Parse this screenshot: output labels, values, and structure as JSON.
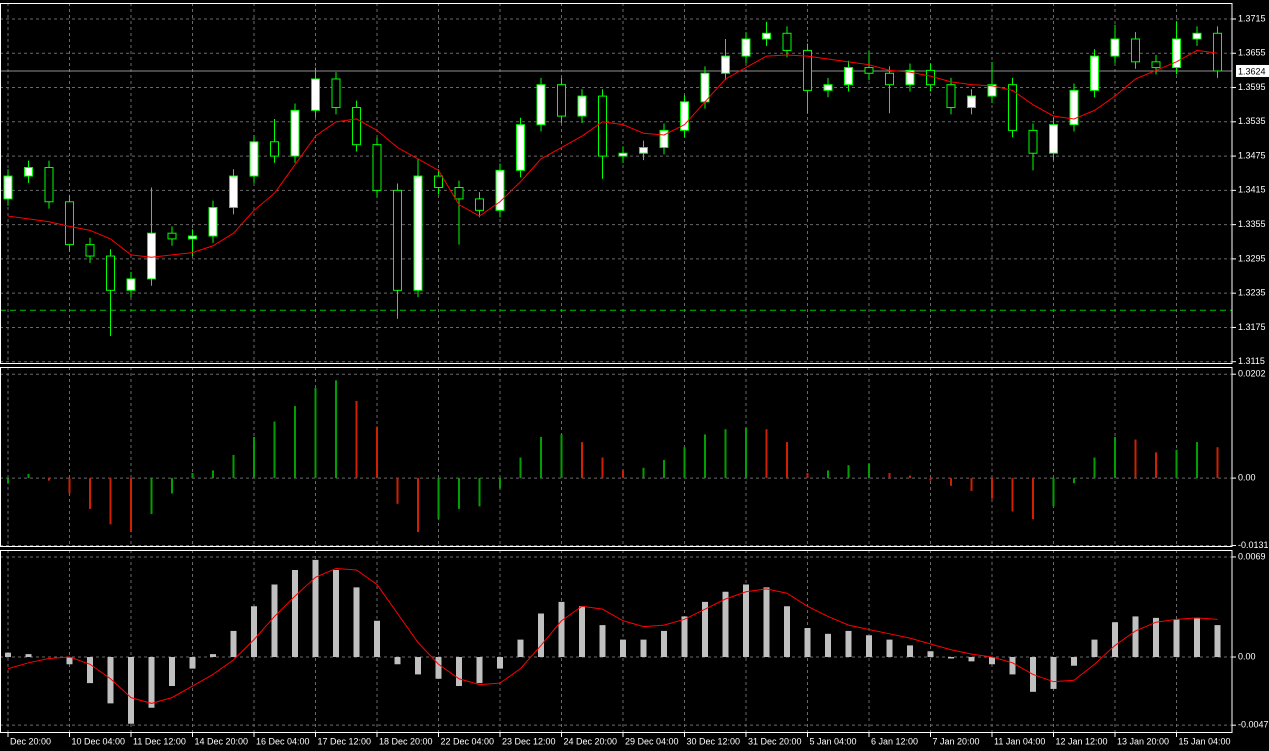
{
  "chart_data": [
    {
      "type": "candlestick",
      "open": [
        1.34,
        1.344,
        1.3455,
        1.3395,
        1.332,
        1.33,
        1.324,
        1.326,
        1.334,
        1.333,
        1.3335,
        1.3385,
        1.344,
        1.35,
        1.3475,
        1.3555,
        1.361,
        1.356,
        1.3495,
        1.3415,
        1.324,
        1.344,
        1.342,
        1.34,
        1.338,
        1.345,
        1.353,
        1.36,
        1.3545,
        1.358,
        1.3475,
        1.348,
        1.349,
        1.352,
        1.357,
        1.362,
        1.365,
        1.368,
        1.369,
        1.366,
        1.359,
        1.36,
        1.363,
        1.362,
        1.36,
        1.3625,
        1.36,
        1.356,
        1.358,
        1.36,
        1.352,
        1.348,
        1.353,
        1.359,
        1.365,
        1.368,
        1.364,
        1.363,
        1.368,
        1.369
      ],
      "high": [
        1.3452,
        1.3467,
        1.3467,
        1.3407,
        1.3332,
        1.3312,
        1.3272,
        1.342,
        1.3352,
        1.3347,
        1.3397,
        1.3452,
        1.3512,
        1.354,
        1.3567,
        1.363,
        1.3622,
        1.3572,
        1.3507,
        1.3427,
        1.347,
        1.3452,
        1.3432,
        1.3412,
        1.3462,
        1.3542,
        1.3612,
        1.3612,
        1.3592,
        1.3592,
        1.3492,
        1.3502,
        1.3532,
        1.3582,
        1.3632,
        1.368,
        1.3692,
        1.371,
        1.3702,
        1.3672,
        1.3612,
        1.3642,
        1.366,
        1.3632,
        1.3637,
        1.3637,
        1.3612,
        1.3592,
        1.364,
        1.3612,
        1.3532,
        1.3542,
        1.3602,
        1.3662,
        1.3705,
        1.3692,
        1.3652,
        1.371,
        1.3702,
        1.3702
      ],
      "low": [
        1.3388,
        1.3428,
        1.3383,
        1.3308,
        1.3288,
        1.316,
        1.3228,
        1.3248,
        1.3318,
        1.33,
        1.3323,
        1.3373,
        1.3428,
        1.3463,
        1.3463,
        1.3543,
        1.3548,
        1.3483,
        1.3403,
        1.319,
        1.3228,
        1.3408,
        1.332,
        1.3368,
        1.3368,
        1.3438,
        1.3518,
        1.3533,
        1.3533,
        1.3435,
        1.3463,
        1.3468,
        1.3478,
        1.3508,
        1.3558,
        1.3608,
        1.3638,
        1.3668,
        1.3648,
        1.355,
        1.3578,
        1.3588,
        1.3608,
        1.355,
        1.3588,
        1.3588,
        1.3548,
        1.3548,
        1.3568,
        1.3508,
        1.345,
        1.3468,
        1.3518,
        1.3578,
        1.3638,
        1.3628,
        1.3618,
        1.3618,
        1.3668,
        1.3612
      ],
      "close": [
        1.344,
        1.3455,
        1.3395,
        1.332,
        1.33,
        1.324,
        1.326,
        1.334,
        1.333,
        1.3335,
        1.3385,
        1.344,
        1.35,
        1.3475,
        1.3555,
        1.361,
        1.356,
        1.3495,
        1.3415,
        1.324,
        1.344,
        1.342,
        1.34,
        1.338,
        1.345,
        1.353,
        1.36,
        1.3545,
        1.358,
        1.3475,
        1.348,
        1.349,
        1.352,
        1.357,
        1.362,
        1.365,
        1.368,
        1.369,
        1.366,
        1.359,
        1.36,
        1.363,
        1.362,
        1.36,
        1.3625,
        1.36,
        1.356,
        1.358,
        1.36,
        1.352,
        1.348,
        1.353,
        1.359,
        1.365,
        1.368,
        1.364,
        1.363,
        1.368,
        1.369,
        1.3624
      ],
      "up_color": "#ffffff",
      "down_color": "#000000",
      "wick_color": "#00ff00",
      "series": [
        {
          "color": "#ff0000",
          "values": [
            1.337,
            1.3365,
            1.336,
            1.3352,
            1.3345,
            1.333,
            1.3302,
            1.3298,
            1.3302,
            1.3306,
            1.3318,
            1.334,
            1.338,
            1.341,
            1.346,
            1.351,
            1.3535,
            1.354,
            1.352,
            1.349,
            1.347,
            1.345,
            1.339,
            1.337,
            1.3395,
            1.343,
            1.347,
            1.349,
            1.351,
            1.3535,
            1.353,
            1.3515,
            1.3512,
            1.353,
            1.357,
            1.361,
            1.363,
            1.365,
            1.3652,
            1.365,
            1.3645,
            1.364,
            1.3635,
            1.3625,
            1.3622,
            1.3615,
            1.3605,
            1.36,
            1.3598,
            1.359,
            1.3565,
            1.3545,
            1.354,
            1.3555,
            1.358,
            1.361,
            1.3625,
            1.364,
            1.366,
            1.3655
          ]
        }
      ],
      "last_price": 1.3624,
      "level": 1.3205,
      "level_color": "#00c000",
      "ylim": [
        1.3111,
        1.3743
      ],
      "yticks": [
        1.3715,
        1.3655,
        1.3595,
        1.3535,
        1.3475,
        1.3415,
        1.3355,
        1.3295,
        1.3235,
        1.3175,
        1.3115
      ],
      "grid": true
    },
    {
      "type": "bar",
      "values": [
        -0.001,
        0.0008,
        -0.0005,
        -0.003,
        -0.006,
        -0.009,
        -0.0105,
        -0.007,
        -0.003,
        0.001,
        0.0015,
        0.0045,
        0.008,
        0.011,
        0.014,
        0.0175,
        0.019,
        0.015,
        0.01,
        -0.005,
        -0.0105,
        -0.008,
        -0.006,
        -0.0055,
        -0.002,
        0.004,
        0.008,
        0.0085,
        0.007,
        0.004,
        0.0015,
        0.002,
        0.0035,
        0.006,
        0.0085,
        0.0095,
        0.0098,
        0.0095,
        0.007,
        0.001,
        0.0015,
        0.0025,
        0.0028,
        0.001,
        0.0005,
        -0.0005,
        -0.0015,
        -0.0025,
        -0.004,
        -0.0065,
        -0.008,
        -0.0055,
        -0.001,
        0.004,
        0.008,
        0.0075,
        0.005,
        0.0055,
        0.007,
        0.006
      ],
      "up_color": "#00a000",
      "down_color": "#d02000",
      "ylim": [
        -0.0134,
        0.0216
      ],
      "yticks": [
        0.0202,
        {
          "value": 0,
          "label": "0.00"
        },
        -0.0131
      ],
      "grid": true
    },
    {
      "type": "bar",
      "values": [
        0.0003,
        0.0002,
        0.0,
        -0.0005,
        -0.0018,
        -0.0032,
        -0.0046,
        -0.0035,
        -0.002,
        -0.0008,
        0.0002,
        0.0018,
        0.0035,
        0.005,
        0.006,
        0.0067,
        0.006,
        0.0048,
        0.0025,
        -0.0005,
        -0.0012,
        -0.0015,
        -0.002,
        -0.0018,
        -0.0008,
        0.0012,
        0.003,
        0.0038,
        0.0035,
        0.0022,
        0.0012,
        0.0012,
        0.0018,
        0.0028,
        0.0038,
        0.0045,
        0.005,
        0.0048,
        0.0035,
        0.002,
        0.0016,
        0.0018,
        0.0015,
        0.0012,
        0.0008,
        0.0004,
        -0.0001,
        -0.0003,
        -0.0005,
        -0.0012,
        -0.0024,
        -0.0022,
        -0.0006,
        0.0012,
        0.0024,
        0.0028,
        0.0027,
        0.0026,
        0.0027,
        0.0022
      ],
      "color": "#c0c0c0",
      "series": [
        {
          "color": "#ff0000",
          "values": [
            -0.0008,
            -0.0004,
            -0.0001,
            0.0,
            -0.0005,
            -0.0015,
            -0.0028,
            -0.0032,
            -0.0028,
            -0.002,
            -0.0012,
            -0.0002,
            0.0012,
            0.0028,
            0.0042,
            0.0055,
            0.0061,
            0.006,
            0.005,
            0.003,
            0.001,
            -0.0005,
            -0.0015,
            -0.0019,
            -0.0018,
            -0.0008,
            0.0008,
            0.0025,
            0.0035,
            0.0033,
            0.0025,
            0.0021,
            0.0022,
            0.0026,
            0.0033,
            0.004,
            0.0045,
            0.0047,
            0.0044,
            0.0035,
            0.0028,
            0.0022,
            0.0019,
            0.0016,
            0.0013,
            0.0009,
            0.0005,
            0.0002,
            0.0,
            -0.0004,
            -0.0012,
            -0.0017,
            -0.0016,
            -0.0005,
            0.0008,
            0.0018,
            0.0024,
            0.0026,
            0.0027,
            0.0026
          ]
        }
      ],
      "categories": [
        "Dec 20:00",
        null,
        null,
        "10 Dec 04:00",
        null,
        null,
        "11 Dec 12:00",
        null,
        null,
        "14 Dec 20:00",
        null,
        null,
        "16 Dec 04:00",
        null,
        null,
        "17 Dec 12:00",
        null,
        null,
        "18 Dec 20:00",
        null,
        null,
        "22 Dec 04:00",
        null,
        null,
        "23 Dec 12:00",
        null,
        null,
        "24 Dec 20:00",
        null,
        null,
        "29 Dec 04:00",
        null,
        null,
        "30 Dec 12:00",
        null,
        null,
        "31 Dec 20:00",
        null,
        null,
        "5 Jan 04:00",
        null,
        null,
        "6 Jan 12:00",
        null,
        null,
        "7 Jan 20:00",
        null,
        null,
        "11 Jan 04:00",
        null,
        null,
        "12 Jan 12:00",
        null,
        null,
        "13 Jan 20:00",
        null,
        null,
        "15 Jan 04:00",
        null,
        null
      ],
      "ylim": [
        -0.00524,
        0.00738
      ],
      "yticks": [
        0.0069,
        {
          "value": 0,
          "label": "0.00"
        },
        -0.0047
      ],
      "grid": true
    }
  ]
}
